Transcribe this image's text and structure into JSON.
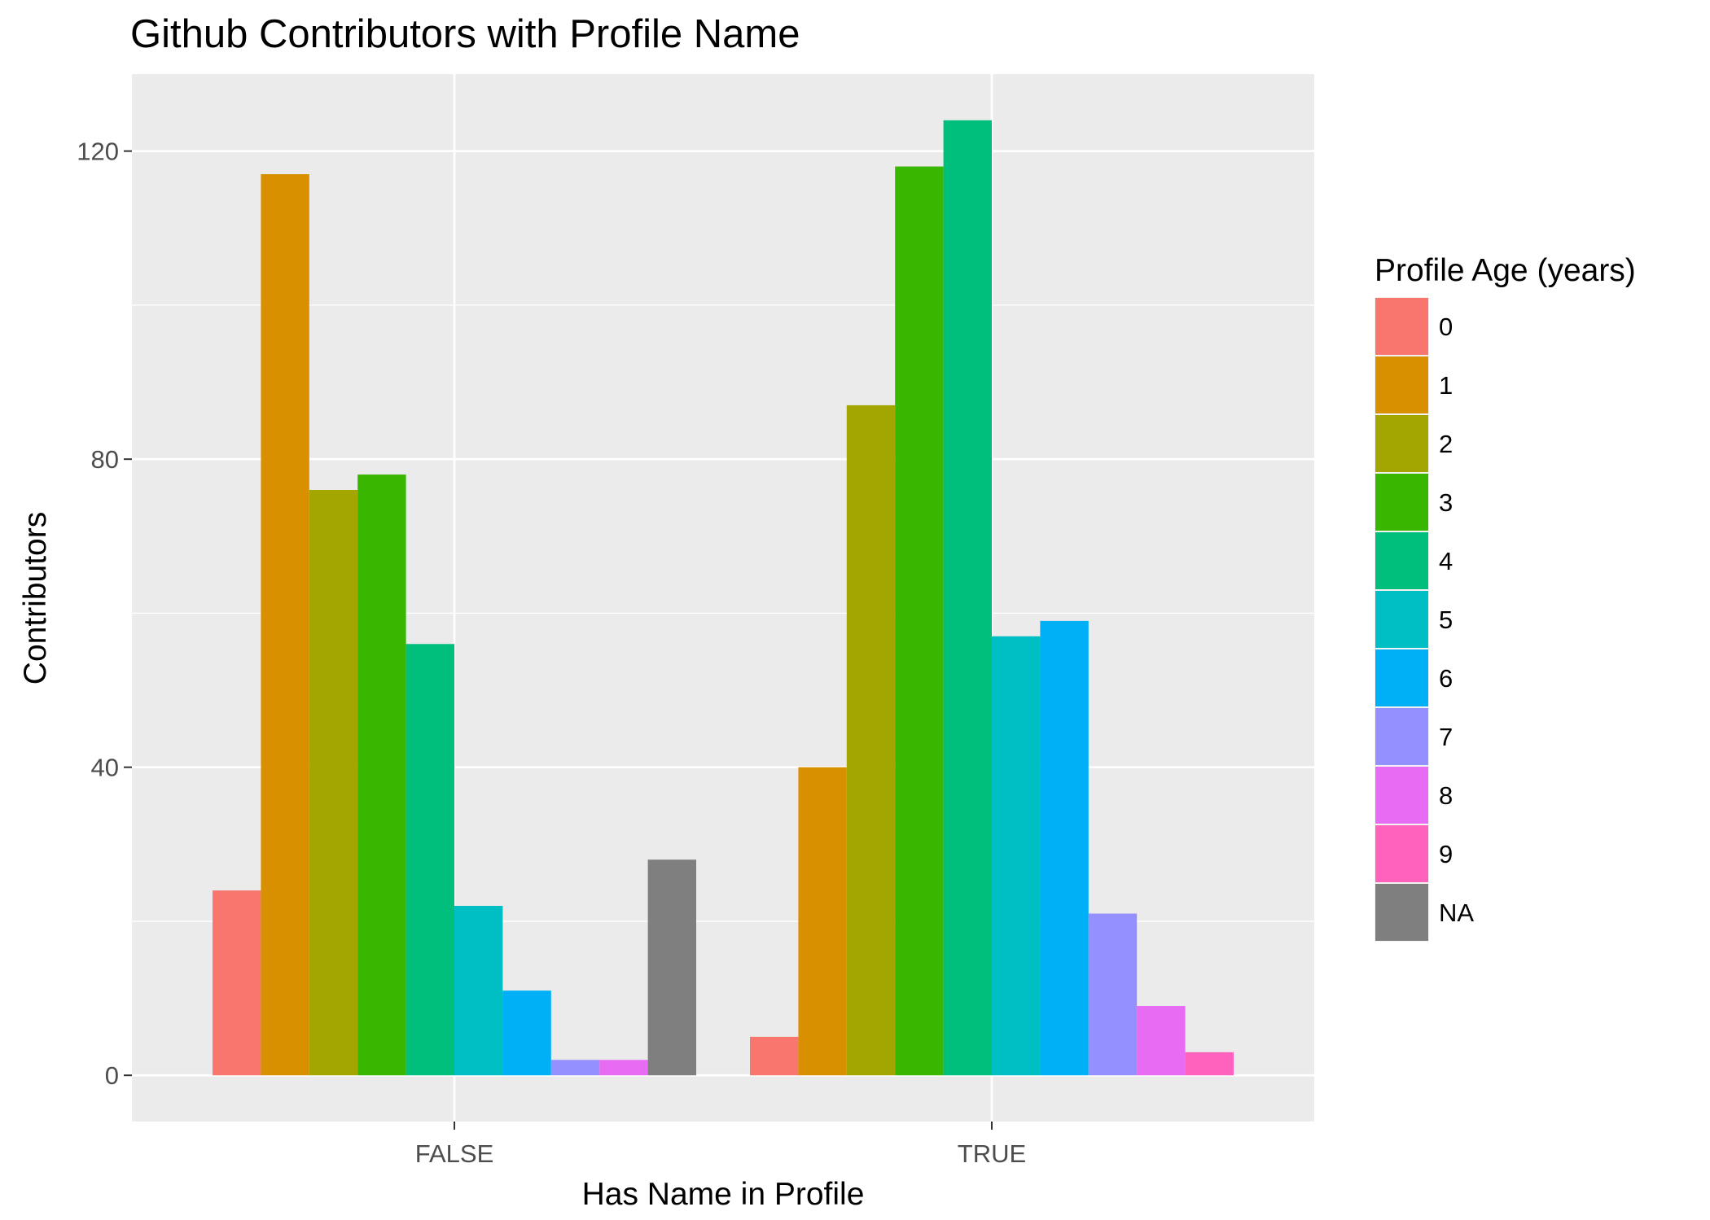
{
  "chart_data": {
    "type": "bar",
    "title": "Github Contributors with Profile Name",
    "xlabel": "Has Name in Profile",
    "ylabel": "Contributors",
    "categories": [
      "FALSE",
      "TRUE"
    ],
    "ylim": [
      -6,
      130
    ],
    "yticks": [
      0,
      40,
      80,
      120
    ],
    "grid": true,
    "legend": {
      "title": "Profile Age (years)",
      "placement": "right"
    },
    "series": [
      {
        "name": "0",
        "color": "#F8766D",
        "values": [
          24,
          5
        ]
      },
      {
        "name": "1",
        "color": "#D89000",
        "values": [
          117,
          40
        ]
      },
      {
        "name": "2",
        "color": "#A3A500",
        "values": [
          76,
          87
        ]
      },
      {
        "name": "3",
        "color": "#39B600",
        "values": [
          78,
          118
        ]
      },
      {
        "name": "4",
        "color": "#00BF7D",
        "values": [
          56,
          124
        ]
      },
      {
        "name": "5",
        "color": "#00BFC4",
        "values": [
          22,
          57
        ]
      },
      {
        "name": "6",
        "color": "#00B0F6",
        "values": [
          11,
          59
        ]
      },
      {
        "name": "7",
        "color": "#9590FF",
        "values": [
          2,
          21
        ]
      },
      {
        "name": "8",
        "color": "#E76BF3",
        "values": [
          2,
          9
        ]
      },
      {
        "name": "9",
        "color": "#FF62BC",
        "values": [
          null,
          3
        ]
      },
      {
        "name": "NA",
        "color": "#7F7F7F",
        "values": [
          28,
          null
        ]
      }
    ]
  }
}
